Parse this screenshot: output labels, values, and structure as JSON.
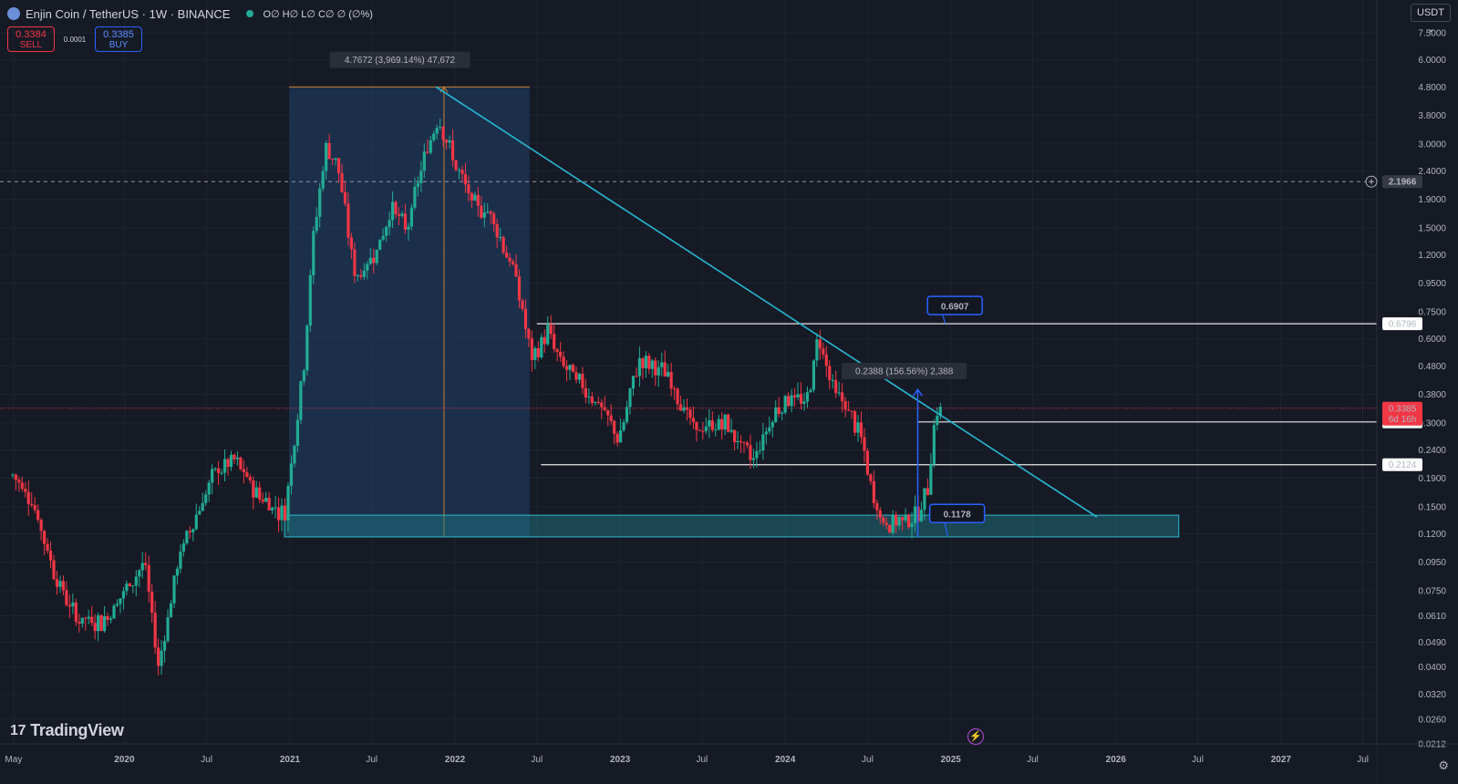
{
  "header": {
    "title": "Enjin Coin / TetherUS · 1W · BINANCE",
    "ohlc": "O∅ H∅ L∅ C∅ ∅ (∅%)",
    "icons": {
      "symbol": "enjin-logo-icon",
      "status": "market-status-dot-icon"
    }
  },
  "trade": {
    "sell_price": "0.3384",
    "sell_label": "SELL",
    "spread": "0.0001",
    "buy_price": "0.3385",
    "buy_label": "BUY"
  },
  "currency_button": "USDT ⌄",
  "logo_text": "TradingView",
  "colors": {
    "background": "#161a25",
    "up": "#22ab94",
    "down": "#f23645",
    "trendline": "#26b8d2",
    "zone": "#1f7f8c",
    "range_box": "#1e3a5f",
    "range_border": "#c77f2e"
  },
  "chart_data": {
    "type": "candlestick",
    "y_scale": "log",
    "ylim": [
      0.0212,
      7.5
    ],
    "xlim": [
      "2019-04-01",
      "2027-08-01"
    ],
    "y_ticks": [
      "7.5000",
      "6.0000",
      "4.8000",
      "3.8000",
      "3.0000",
      "2.4000",
      "1.9000",
      "1.5000",
      "1.2000",
      "0.9500",
      "0.7500",
      "0.6000",
      "0.4800",
      "0.3800",
      "0.3000",
      "0.2400",
      "0.1900",
      "0.1500",
      "0.1200",
      "0.0950",
      "0.0750",
      "0.0610",
      "0.0490",
      "0.0400",
      "0.0320",
      "0.0260",
      "0.0212"
    ],
    "x_ticks": [
      {
        "label": "May",
        "date": "2019-05-01"
      },
      {
        "label": "2020",
        "date": "2020-01-01"
      },
      {
        "label": "Jul",
        "date": "2020-07-01"
      },
      {
        "label": "2021",
        "date": "2021-01-01"
      },
      {
        "label": "Jul",
        "date": "2021-07-01"
      },
      {
        "label": "2022",
        "date": "2022-01-01"
      },
      {
        "label": "Jul",
        "date": "2022-07-01"
      },
      {
        "label": "2023",
        "date": "2023-01-01"
      },
      {
        "label": "Jul",
        "date": "2023-07-01"
      },
      {
        "label": "2024",
        "date": "2024-01-01"
      },
      {
        "label": "Jul",
        "date": "2024-07-01"
      },
      {
        "label": "2025",
        "date": "2025-01-01"
      },
      {
        "label": "Jul",
        "date": "2025-07-01"
      },
      {
        "label": "2026",
        "date": "2026-01-01"
      },
      {
        "label": "Jul",
        "date": "2026-07-01"
      },
      {
        "label": "2027",
        "date": "2027-01-01"
      },
      {
        "label": "Jul",
        "date": "2027-07-01"
      }
    ],
    "price_path": [
      {
        "date": "2019-04-29",
        "price": 0.195
      },
      {
        "date": "2019-06-10",
        "price": 0.16
      },
      {
        "date": "2019-08-01",
        "price": 0.085
      },
      {
        "date": "2019-09-15",
        "price": 0.06
      },
      {
        "date": "2019-11-15",
        "price": 0.058
      },
      {
        "date": "2019-12-20",
        "price": 0.07
      },
      {
        "date": "2020-02-15",
        "price": 0.095
      },
      {
        "date": "2020-03-16",
        "price": 0.04
      },
      {
        "date": "2020-05-01",
        "price": 0.1
      },
      {
        "date": "2020-06-15",
        "price": 0.15
      },
      {
        "date": "2020-07-20",
        "price": 0.2
      },
      {
        "date": "2020-09-01",
        "price": 0.22
      },
      {
        "date": "2020-10-15",
        "price": 0.17
      },
      {
        "date": "2020-12-20",
        "price": 0.14
      },
      {
        "date": "2021-02-01",
        "price": 0.5
      },
      {
        "date": "2021-02-20",
        "price": 1.3
      },
      {
        "date": "2021-03-20",
        "price": 2.9
      },
      {
        "date": "2021-04-15",
        "price": 2.6
      },
      {
        "date": "2021-05-25",
        "price": 1.0
      },
      {
        "date": "2021-06-20",
        "price": 1.1
      },
      {
        "date": "2021-07-20",
        "price": 1.35
      },
      {
        "date": "2021-08-15",
        "price": 1.8
      },
      {
        "date": "2021-09-15",
        "price": 1.45
      },
      {
        "date": "2021-10-20",
        "price": 2.5
      },
      {
        "date": "2021-11-25",
        "price": 3.8
      },
      {
        "date": "2021-12-25",
        "price": 2.7
      },
      {
        "date": "2022-02-10",
        "price": 1.8
      },
      {
        "date": "2022-03-20",
        "price": 1.7
      },
      {
        "date": "2022-05-15",
        "price": 1.0
      },
      {
        "date": "2022-06-20",
        "price": 0.5
      },
      {
        "date": "2022-07-25",
        "price": 0.64
      },
      {
        "date": "2022-08-20",
        "price": 0.5
      },
      {
        "date": "2022-11-15",
        "price": 0.35
      },
      {
        "date": "2022-12-30",
        "price": 0.26
      },
      {
        "date": "2023-02-10",
        "price": 0.5
      },
      {
        "date": "2023-04-15",
        "price": 0.45
      },
      {
        "date": "2023-06-15",
        "price": 0.28
      },
      {
        "date": "2023-08-20",
        "price": 0.3
      },
      {
        "date": "2023-10-20",
        "price": 0.22
      },
      {
        "date": "2023-12-10",
        "price": 0.33
      },
      {
        "date": "2024-01-15",
        "price": 0.38
      },
      {
        "date": "2024-02-15",
        "price": 0.34
      },
      {
        "date": "2024-03-15",
        "price": 0.62
      },
      {
        "date": "2024-04-15",
        "price": 0.4
      },
      {
        "date": "2024-05-20",
        "price": 0.33
      },
      {
        "date": "2024-06-15",
        "price": 0.27
      },
      {
        "date": "2024-07-10",
        "price": 0.17
      },
      {
        "date": "2024-08-05",
        "price": 0.13
      },
      {
        "date": "2024-09-15",
        "price": 0.135
      },
      {
        "date": "2024-10-20",
        "price": 0.14
      },
      {
        "date": "2024-11-10",
        "price": 0.17
      },
      {
        "date": "2024-11-25",
        "price": 0.3
      },
      {
        "date": "2024-12-09",
        "price": 0.3385
      }
    ],
    "horizontal_lines": [
      {
        "price": 0.6796,
        "from": "2022-07-01",
        "label": "0.6796"
      },
      {
        "price": 0.3023,
        "from": "2024-10-20",
        "label": "0.3023"
      },
      {
        "price": 0.2124,
        "from": "2022-07-10",
        "label": "0.2124"
      }
    ],
    "crosshair_line": {
      "price": 2.1966,
      "label": "2.1966"
    },
    "last_price": {
      "price": 0.3385,
      "label": "0.3385",
      "countdown": "6d 16h"
    },
    "trendline": {
      "start": {
        "date": "2021-11-20",
        "price": 4.8
      },
      "end": {
        "date": "2025-11-20",
        "price": 0.138
      }
    },
    "support_zone": {
      "from": "2020-12-20",
      "to": "2026-05-20",
      "low": 0.117,
      "high": 0.14
    },
    "range_box": {
      "from": "2020-12-30",
      "to": "2022-06-15",
      "low": 0.117,
      "high": 4.8
    },
    "measure_labels": [
      {
        "text": "4.7672 (3,969.14%) 47,672",
        "date": "2021-09-01",
        "price": 6.0
      },
      {
        "text": "0.2388 (156.56%) 2,388",
        "date": "2024-09-20",
        "price": 0.46
      }
    ],
    "measure_arrow": {
      "date": "2024-10-20",
      "from": 0.117,
      "to": 0.395
    },
    "callouts": [
      {
        "text": "0.6907",
        "date": "2025-01-10",
        "price": 0.79,
        "anchor_date": "2024-12-20",
        "anchor_price": 0.68
      },
      {
        "text": "0.1178",
        "date": "2025-01-15",
        "price": 0.142,
        "anchor_date": "2024-12-25",
        "anchor_price": 0.118
      }
    ]
  }
}
